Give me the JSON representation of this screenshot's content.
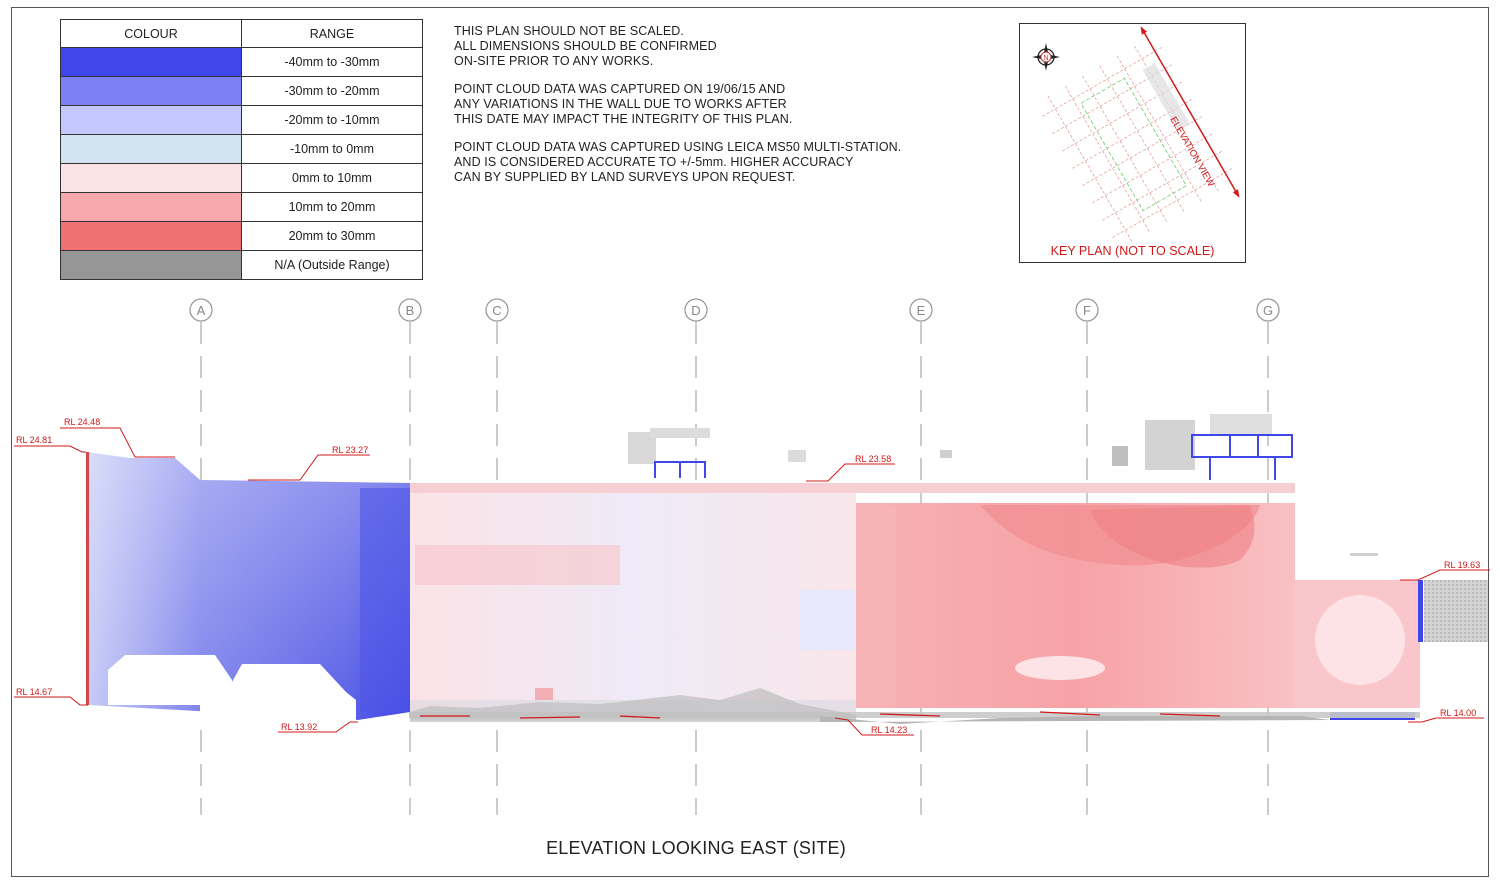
{
  "legend": {
    "header_colour": "COLOUR",
    "header_range": "RANGE",
    "rows": [
      {
        "color": "#3f46ea",
        "label": "-40mm to -30mm"
      },
      {
        "color": "#7c80f2",
        "label": "-30mm to -20mm"
      },
      {
        "color": "#c2c8fb",
        "label": "-20mm to -10mm"
      },
      {
        "color": "#d3e3f0",
        "label": "-10mm to 0mm"
      },
      {
        "color": "#fbe2e5",
        "label": "0mm to 10mm"
      },
      {
        "color": "#f6a8ad",
        "label": "10mm to 20mm"
      },
      {
        "color": "#ef7171",
        "label": "20mm to 30mm"
      },
      {
        "color": "#969696",
        "label": "N/A (Outside Range)"
      }
    ]
  },
  "notes": [
    "THIS PLAN SHOULD NOT BE SCALED.\nALL DIMENSIONS SHOULD BE CONFIRMED\nON-SITE PRIOR TO ANY WORKS.",
    "POINT CLOUD DATA WAS CAPTURED ON 19/06/15 AND\nANY VARIATIONS IN THE WALL DUE TO WORKS AFTER\nTHIS DATE MAY IMPACT THE INTEGRITY OF THIS PLAN.",
    "POINT CLOUD DATA WAS CAPTURED USING LEICA MS50 MULTI-STATION.\nAND IS CONSIDERED ACCURATE TO +/-5mm. HIGHER ACCURACY\nCAN BY SUPPLIED BY LAND SURVEYS UPON REQUEST."
  ],
  "key_plan": {
    "label": "KEY PLAN (NOT TO SCALE)",
    "elevation_view_label": "ELEVATION VIEW",
    "north_label": "N"
  },
  "grid_labels": [
    "A",
    "B",
    "C",
    "D",
    "E",
    "F",
    "G"
  ],
  "levels": [
    "RL 24.48",
    "RL 24.81",
    "RL 23.27",
    "RL 23.58",
    "RL 19.63",
    "RL 14.67",
    "RL 13.92",
    "RL 14.23",
    "RL 14.00"
  ],
  "title": "ELEVATION LOOKING EAST (SITE)",
  "colors": {
    "annotation_red": "#d01818",
    "grid_grey": "#9a9a9a"
  }
}
